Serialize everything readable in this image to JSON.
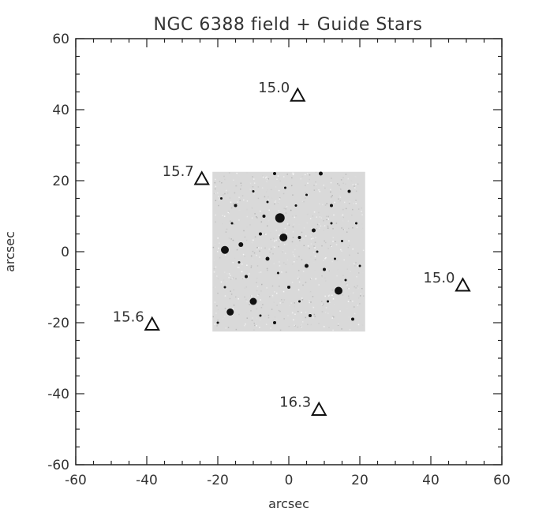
{
  "chart_data": {
    "type": "scatter",
    "title": "NGC 6388 field  + Guide Stars",
    "xlabel": "arcsec",
    "ylabel": "arcsec",
    "xlim": [
      -60,
      60
    ],
    "ylim": [
      -60,
      60
    ],
    "xticks": [
      "-60",
      "-40",
      "-20",
      "0",
      "20",
      "40",
      "60"
    ],
    "yticks": [
      "60",
      "40",
      "20",
      "0",
      "-20",
      "-40",
      "-60"
    ],
    "grid": false,
    "marker": "open-triangle",
    "points": [
      {
        "x": 2.5,
        "y": 44,
        "label": "15.0"
      },
      {
        "x": -24.5,
        "y": 20.5,
        "label": "15.7"
      },
      {
        "x": 49,
        "y": -9.5,
        "label": "15.0"
      },
      {
        "x": -38.5,
        "y": -20.5,
        "label": "15.6"
      },
      {
        "x": 8.5,
        "y": -44.5,
        "label": "16.3"
      }
    ],
    "image_inset": {
      "x_range": [
        -21.5,
        21.5
      ],
      "y_range": [
        -22.5,
        22.5
      ],
      "description_colors": {
        "background": "#d9d9d9",
        "stars": "#111111"
      }
    }
  }
}
